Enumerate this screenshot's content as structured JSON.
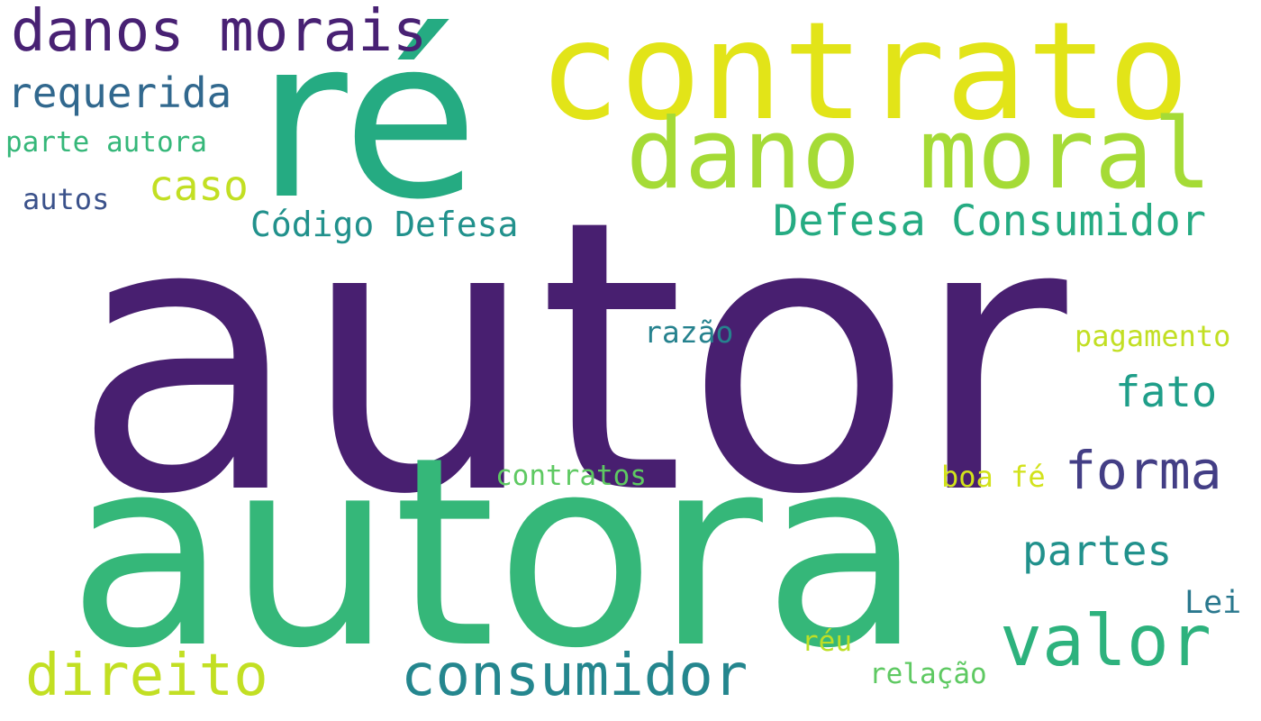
{
  "words": [
    {
      "text": "autor",
      "color": "#481f70"
    },
    {
      "text": "autora",
      "color": "#35b779"
    },
    {
      "text": "ré",
      "color": "#25ab82"
    },
    {
      "text": "contrato",
      "color": "#e2e418"
    },
    {
      "text": "dano moral",
      "color": "#a5db36"
    },
    {
      "text": "danos morais",
      "color": "#482173"
    },
    {
      "text": "requerida",
      "color": "#31688e"
    },
    {
      "text": "parte autora",
      "color": "#35b779"
    },
    {
      "text": "caso",
      "color": "#c2df23"
    },
    {
      "text": "autos",
      "color": "#3b528b"
    },
    {
      "text": "Código Defesa",
      "color": "#21918c"
    },
    {
      "text": "Defesa Consumidor",
      "color": "#25ab82"
    },
    {
      "text": "razão",
      "color": "#26828e"
    },
    {
      "text": "pagamento",
      "color": "#c2df23"
    },
    {
      "text": "fato",
      "color": "#1f9e89"
    },
    {
      "text": "forma",
      "color": "#433e85"
    },
    {
      "text": "contratos",
      "color": "#5ec962"
    },
    {
      "text": "boa fé",
      "color": "#d2e21b"
    },
    {
      "text": "valor",
      "color": "#2db27d"
    },
    {
      "text": "partes",
      "color": "#21918c"
    },
    {
      "text": "Lei",
      "color": "#2a788e"
    },
    {
      "text": "direito",
      "color": "#c2df23"
    },
    {
      "text": "consumidor",
      "color": "#24868e"
    },
    {
      "text": "réu",
      "color": "#bddf26"
    },
    {
      "text": "relação",
      "color": "#5ec962"
    }
  ]
}
